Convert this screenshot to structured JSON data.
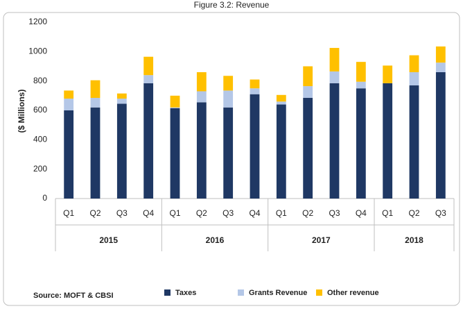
{
  "chart_data": {
    "type": "stacked_bar",
    "title": "Figure 3.2: Revenue",
    "y_label": "($ Millions)",
    "source": "Source: MOFT & CBSI",
    "categories": [
      "Q1",
      "Q2",
      "Q3",
      "Q4",
      "Q1",
      "Q2",
      "Q3",
      "Q4",
      "Q1",
      "Q2",
      "Q3",
      "Q4",
      "Q1",
      "Q2",
      "Q3"
    ],
    "groups": [
      "2015",
      "2016",
      "2017",
      "2018"
    ],
    "series": [
      {
        "name": "Taxes",
        "color": "#1f3864",
        "values": [
          600,
          620,
          645,
          785,
          615,
          655,
          620,
          710,
          640,
          685,
          785,
          750,
          785,
          770,
          860
        ]
      },
      {
        "name": "Grants Revenue",
        "color": "#b4c7e7",
        "values": [
          80,
          65,
          35,
          55,
          5,
          75,
          115,
          40,
          20,
          80,
          80,
          45,
          0,
          90,
          65
        ]
      },
      {
        "name": "Other revenue",
        "color": "#ffc000",
        "values": [
          55,
          120,
          35,
          125,
          80,
          130,
          100,
          60,
          45,
          135,
          160,
          135,
          120,
          115,
          110
        ]
      }
    ],
    "ylim": [
      0,
      1200
    ],
    "yticks": [
      0,
      200,
      400,
      600,
      800,
      1000,
      1200
    ],
    "grid": false,
    "legend": "bottom"
  }
}
